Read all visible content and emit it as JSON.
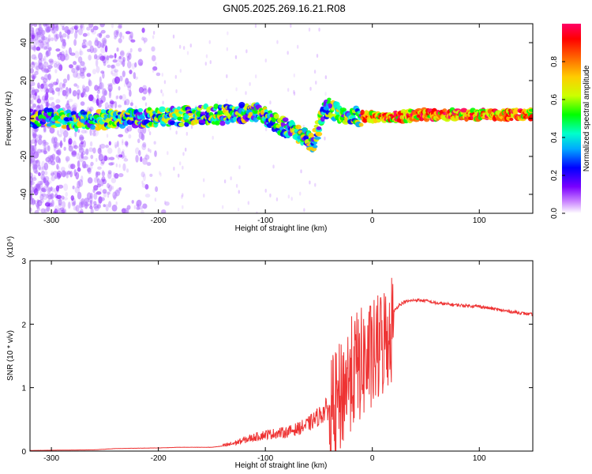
{
  "title": "GN05.2025.269.16.21.R08",
  "chart_data": [
    {
      "type": "heatmap",
      "name": "spectrogram",
      "xlabel": "Height of straight line (km)",
      "ylabel": "Frequency (Hz)",
      "xlim": [
        -320,
        150
      ],
      "ylim": [
        -50,
        50
      ],
      "xticks": [
        -300,
        -200,
        -100,
        0,
        100
      ],
      "yticks": [
        -40,
        -20,
        0,
        20,
        40
      ],
      "colorbar": {
        "label": "Normalized spectral amplitude",
        "range": [
          0,
          1
        ],
        "ticks": [
          0.0,
          0.2,
          0.4,
          0.6,
          0.8
        ],
        "colors": [
          "#ffffff",
          "#cc88ff",
          "#7a00ff",
          "#0000ff",
          "#00aaff",
          "#00ffcc",
          "#00ff00",
          "#ccff00",
          "#ffcc00",
          "#ff6600",
          "#ff0000",
          "#ff0066"
        ]
      },
      "ridge": {
        "x": [
          -320,
          -300,
          -280,
          -260,
          -240,
          -220,
          -200,
          -180,
          -160,
          -140,
          -120,
          -110,
          -100,
          -90,
          -80,
          -70,
          -60,
          -55,
          -50,
          -45,
          -40,
          -35,
          -30,
          -25,
          -20,
          -10,
          0,
          20,
          50,
          80,
          100,
          120,
          150
        ],
        "y": [
          0,
          0,
          -1,
          -1,
          0,
          0,
          1,
          1,
          2,
          2,
          3,
          3,
          1,
          -2,
          -5,
          -8,
          -11,
          -13,
          -4,
          4,
          6,
          4,
          3,
          2,
          1,
          1,
          1,
          1,
          2,
          2,
          2,
          2,
          2
        ]
      }
    },
    {
      "type": "line",
      "name": "snr",
      "xlabel": "Height of straight line (km)",
      "ylabel": "SNR (10 * v/v)",
      "y_multiplier": "(x10⁴)",
      "xlim": [
        -320,
        150
      ],
      "ylim": [
        0,
        3
      ],
      "xticks": [
        -300,
        -200,
        -100,
        0,
        100
      ],
      "yticks": [
        0,
        1,
        2,
        3
      ],
      "color": "#ee3333",
      "series": [
        {
          "x": [
            -320,
            -260,
            -240,
            -200,
            -180,
            -150,
            -140,
            -130,
            -120,
            -110,
            -100,
            -90,
            -80,
            -70,
            -60,
            -50,
            -40,
            -35,
            -30,
            -25,
            -20,
            -15,
            -10,
            -5,
            0,
            5,
            10,
            15,
            20,
            25,
            30,
            40,
            50,
            60,
            80,
            100,
            120,
            150
          ],
          "y": [
            0.01,
            0.02,
            0.04,
            0.05,
            0.06,
            0.06,
            0.08,
            0.12,
            0.17,
            0.22,
            0.26,
            0.28,
            0.3,
            0.35,
            0.42,
            0.55,
            0.7,
            0.85,
            1.0,
            1.25,
            1.4,
            1.5,
            1.55,
            1.6,
            1.65,
            1.75,
            1.9,
            2.05,
            2.2,
            2.3,
            2.35,
            2.38,
            2.37,
            2.33,
            2.3,
            2.28,
            2.22,
            2.15
          ]
        }
      ]
    }
  ]
}
